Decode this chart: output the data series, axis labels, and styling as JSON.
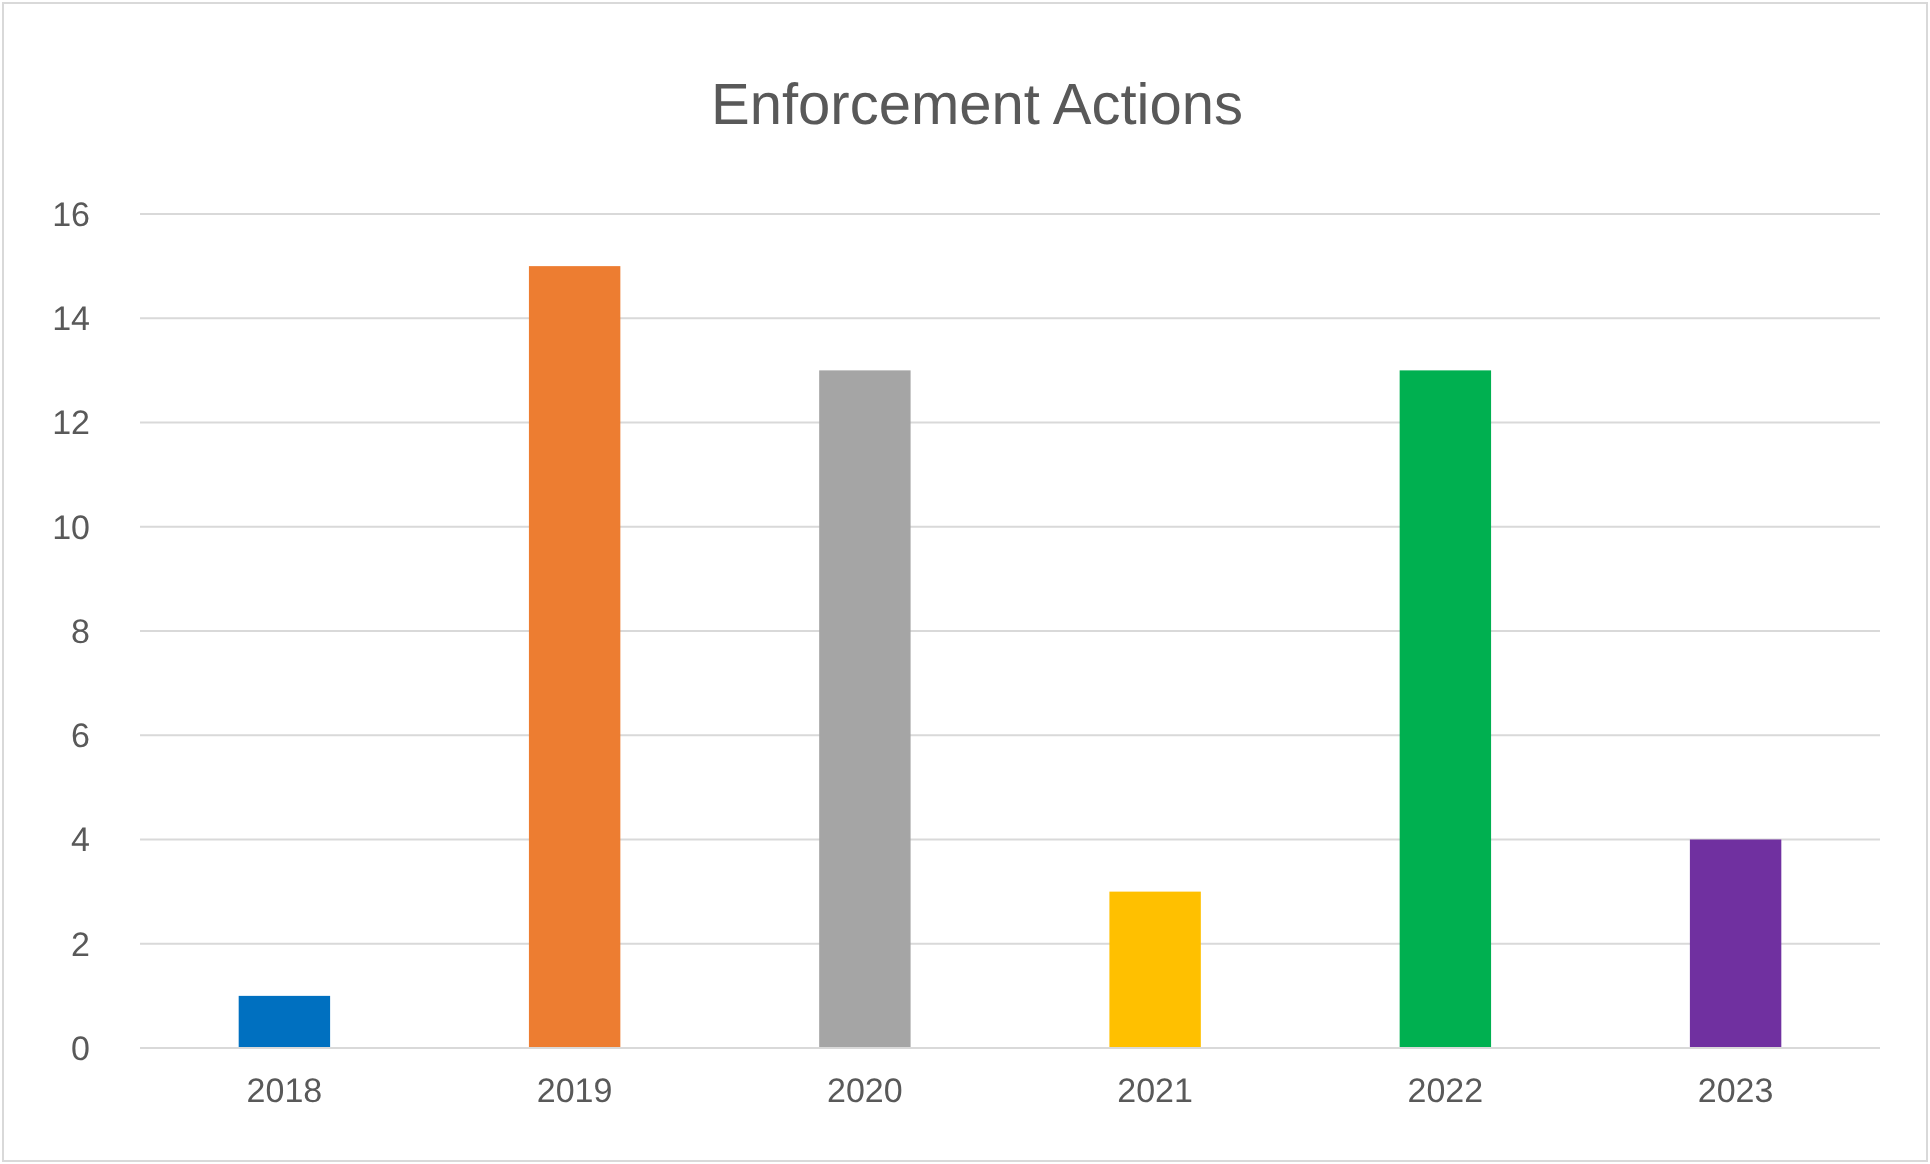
{
  "chart_data": {
    "type": "bar",
    "title": "Enforcement Actions",
    "categories": [
      "2018",
      "2019",
      "2020",
      "2021",
      "2022",
      "2023"
    ],
    "values": [
      1,
      15,
      13,
      3,
      13,
      4
    ],
    "colors": [
      "#0070c0",
      "#ed7d31",
      "#a5a5a5",
      "#ffc000",
      "#00b050",
      "#7030a0"
    ],
    "ylim": [
      0,
      16
    ],
    "yticks": [
      0,
      2,
      4,
      6,
      8,
      10,
      12,
      14,
      16
    ],
    "grid": "y"
  }
}
